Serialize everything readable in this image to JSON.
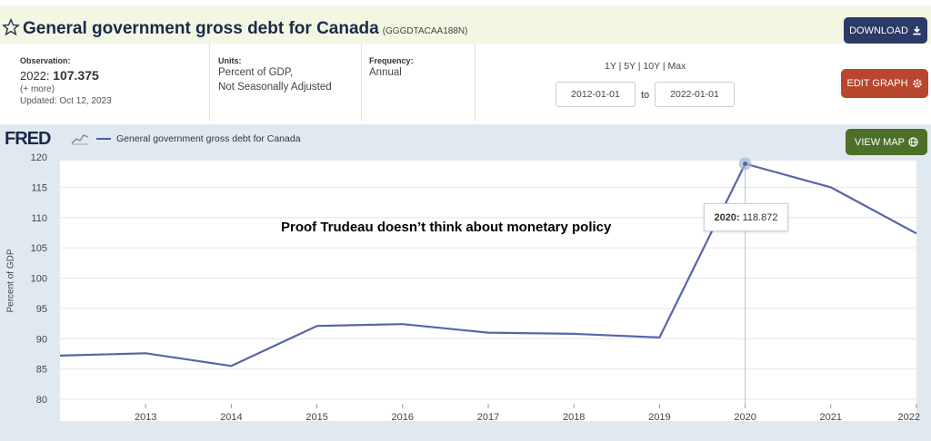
{
  "header": {
    "title": "General government gross debt for Canada",
    "series_id": "(GGGDTACAA188N)",
    "download_label": "DOWNLOAD"
  },
  "info": {
    "observation_label": "Observation:",
    "observation_year": "2022:",
    "observation_value": "107.375",
    "more_link": "(+ more)",
    "updated": "Updated: Oct 12, 2023",
    "units_label": "Units:",
    "units_line1": "Percent of GDP,",
    "units_line2": "Not Seasonally Adjusted",
    "frequency_label": "Frequency:",
    "frequency_value": "Annual",
    "range_links": "1Y | 5Y | 10Y | Max",
    "start_date": "2012-01-01",
    "to_label": "to",
    "end_date": "2022-01-01",
    "edit_graph_label": "EDIT GRAPH"
  },
  "graph": {
    "logo": "FRED",
    "legend_label": "General government gross debt for Canada",
    "view_map_label": "VIEW MAP",
    "annotation": "Proof Trudeau doesn’t think about monetary policy",
    "tooltip_year": "2020:",
    "tooltip_value": "118.872"
  },
  "colors": {
    "line": "#5566a8",
    "download": "#2b3a66",
    "edit": "#b8472d",
    "map": "#4e6f2a"
  },
  "chart_data": {
    "type": "line",
    "ylabel": "Percent of GDP",
    "x": [
      2012,
      2013,
      2014,
      2015,
      2016,
      2017,
      2018,
      2019,
      2020,
      2021,
      2022
    ],
    "series": [
      {
        "values": [
          87.2,
          87.6,
          85.5,
          92.1,
          92.4,
          91.0,
          90.8,
          90.2,
          118.872,
          115.0,
          107.375
        ]
      }
    ],
    "xticks": [
      "2013",
      "2014",
      "2015",
      "2016",
      "2017",
      "2018",
      "2019",
      "2020",
      "2021",
      "2022"
    ],
    "yticks": [
      "80",
      "85",
      "90",
      "95",
      "100",
      "105",
      "110",
      "115",
      "120"
    ],
    "ylim": [
      80,
      120
    ],
    "grid": true,
    "highlight": {
      "x": 2020,
      "y": 118.872
    }
  }
}
